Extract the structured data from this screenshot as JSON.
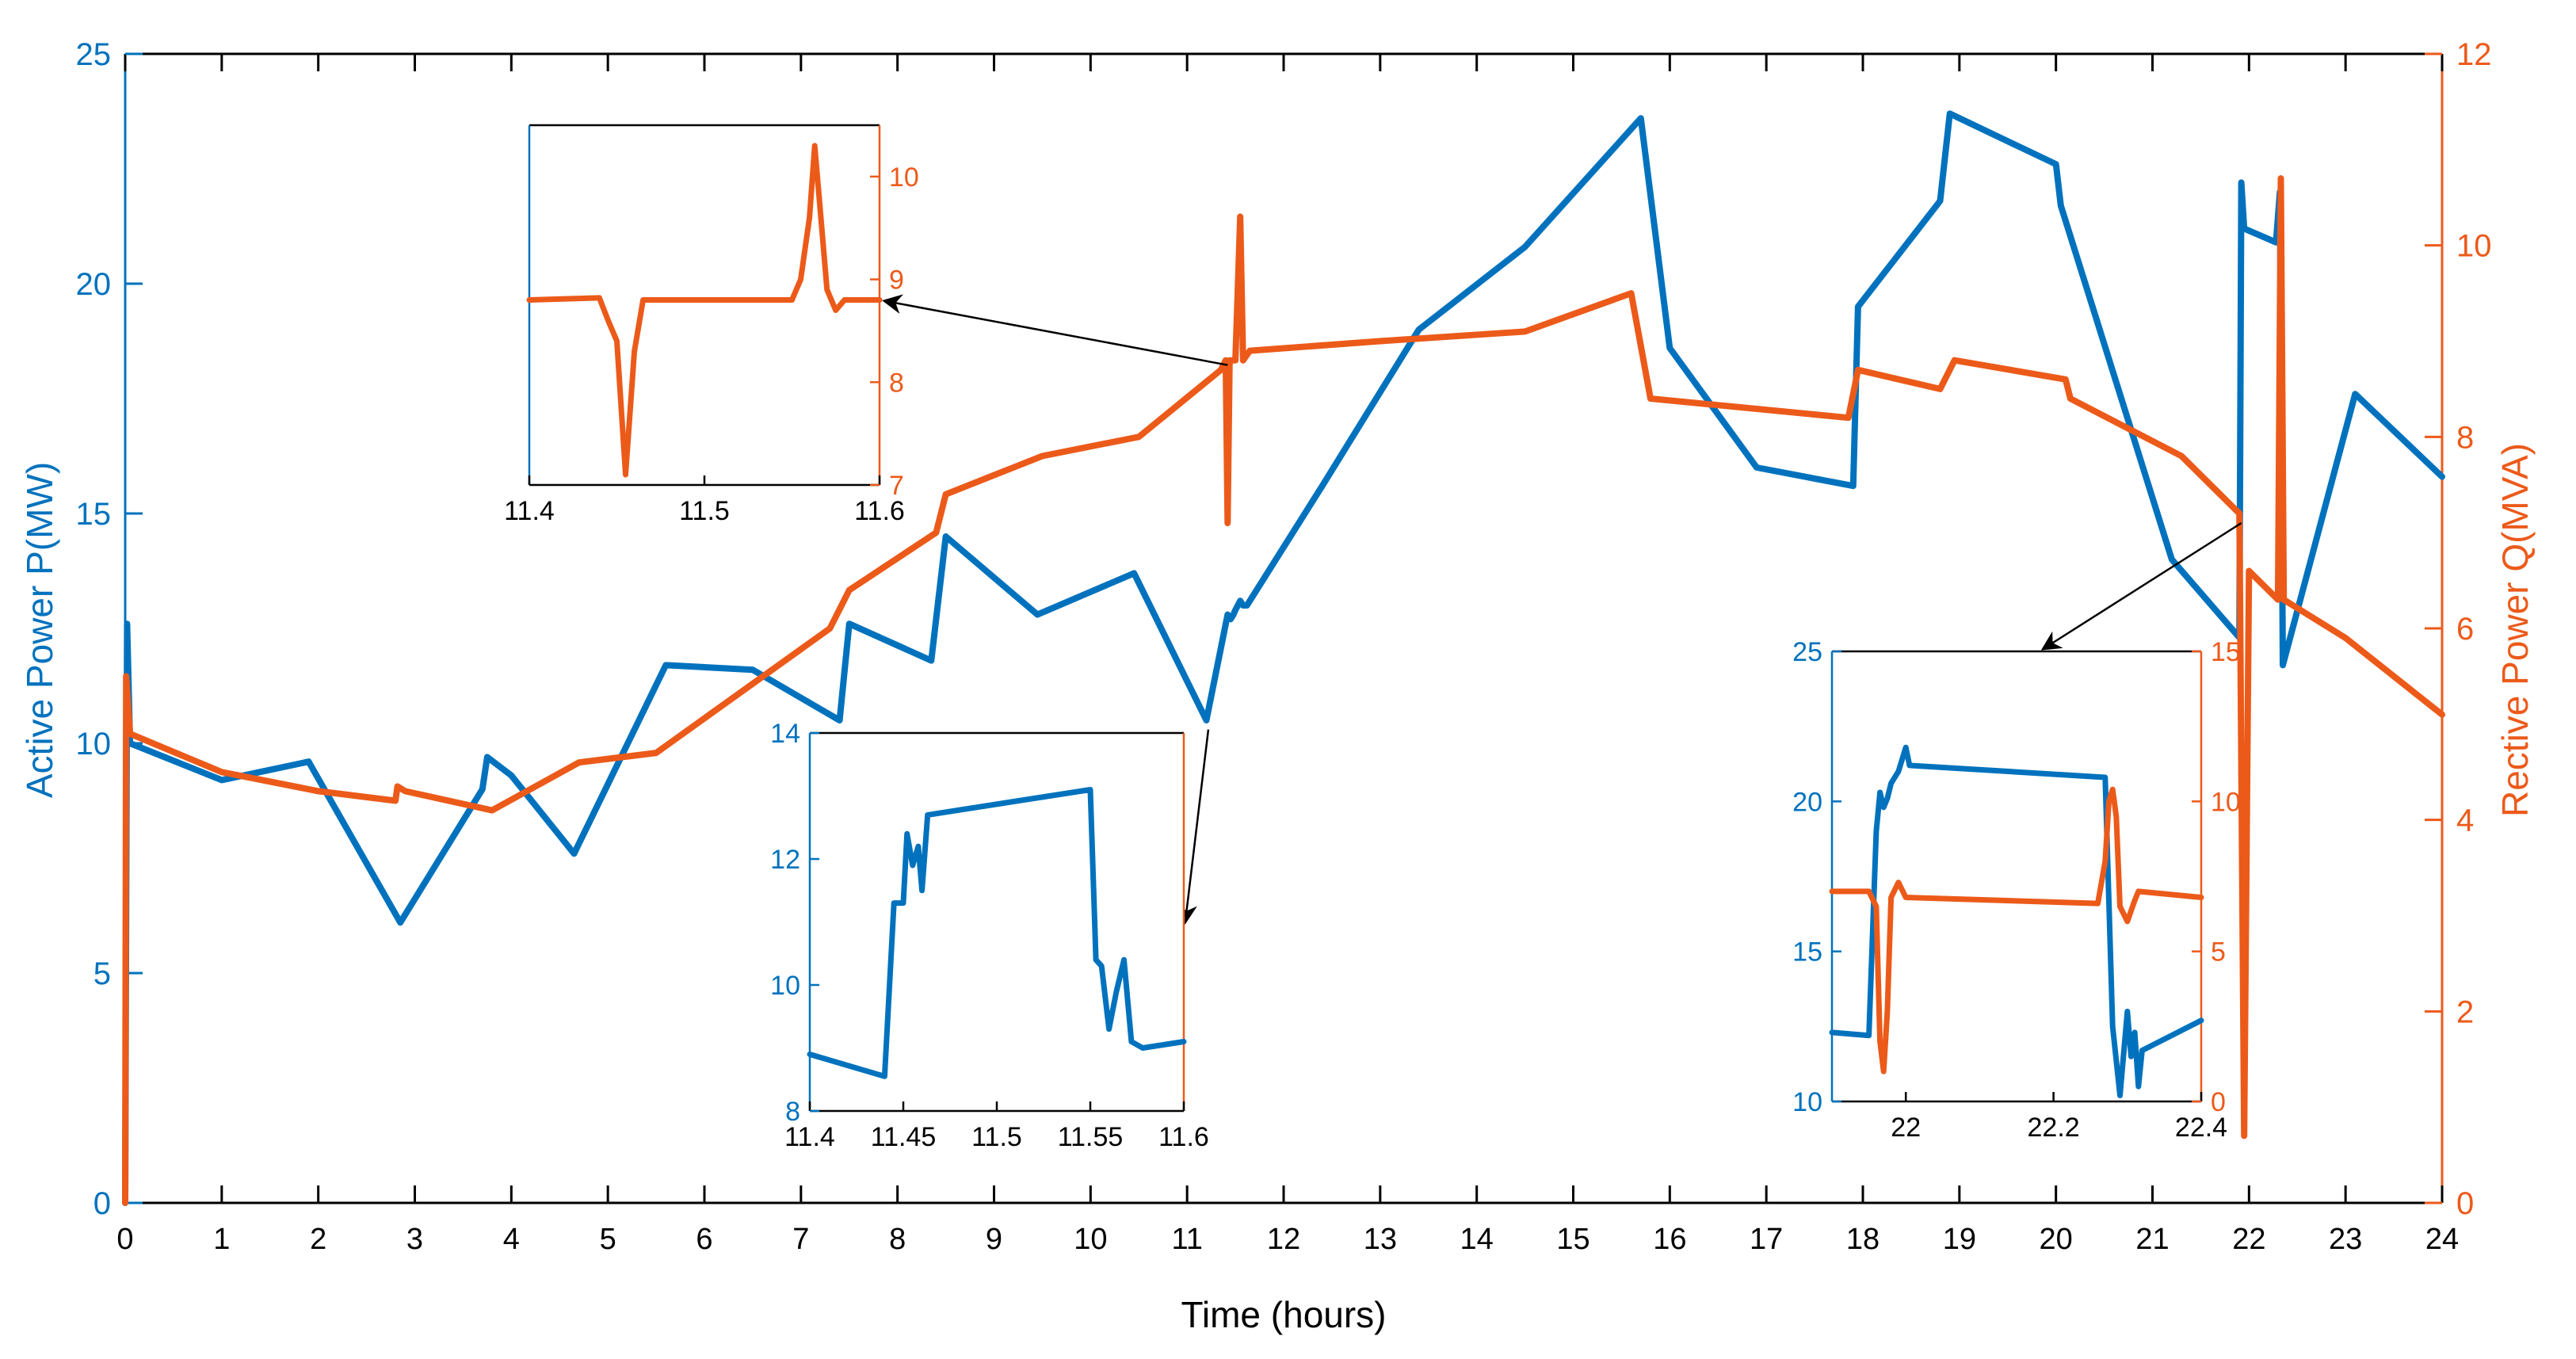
{
  "colors": {
    "active_power": "#0072BD",
    "reactive_power": "#EC5A1A",
    "axis_black": "#000000",
    "arrow": "#000000"
  },
  "chart_data": {
    "type": "line",
    "xlabel": "Time (hours)",
    "ylabel_left": "Active Power P(MW)",
    "ylabel_right": "Rective Power Q(MVA)",
    "xlim": [
      0,
      24
    ],
    "ylim_left": [
      0,
      25
    ],
    "ylim_right": [
      0,
      12
    ],
    "xticks": [
      "0",
      "1",
      "2",
      "3",
      "4",
      "5",
      "6",
      "7",
      "8",
      "9",
      "10",
      "11",
      "12",
      "13",
      "14",
      "15",
      "16",
      "17",
      "18",
      "19",
      "20",
      "21",
      "22",
      "23",
      "24"
    ],
    "yticks_left": [
      "0",
      "5",
      "10",
      "15",
      "20",
      "25"
    ],
    "yticks_right": [
      "0",
      "2",
      "4",
      "6",
      "8",
      "10",
      "12"
    ],
    "grid": false,
    "series": [
      {
        "axis": "left",
        "color_key": "active_power",
        "points": [
          [
            0,
            0
          ],
          [
            0.02,
            12.6
          ],
          [
            0.05,
            10
          ],
          [
            1,
            9.2
          ],
          [
            1.9,
            9.6
          ],
          [
            2.85,
            6.1
          ],
          [
            3.7,
            9
          ],
          [
            3.75,
            9.7
          ],
          [
            4,
            9.3
          ],
          [
            4.65,
            7.6
          ],
          [
            5.6,
            11.7
          ],
          [
            6.5,
            11.6
          ],
          [
            7.4,
            10.5
          ],
          [
            7.5,
            12.6
          ],
          [
            8.35,
            11.8
          ],
          [
            8.5,
            14.5
          ],
          [
            9.45,
            12.8
          ],
          [
            10.45,
            13.7
          ],
          [
            11.2,
            10.5
          ],
          [
            11.42,
            12.8
          ],
          [
            11.45,
            12.7
          ],
          [
            11.48,
            12.8
          ],
          [
            11.5,
            12.9
          ],
          [
            11.55,
            13.1
          ],
          [
            11.58,
            13.0
          ],
          [
            11.62,
            13.0
          ],
          [
            12.4,
            15.6
          ],
          [
            13.4,
            19
          ],
          [
            14.5,
            20.8
          ],
          [
            15.7,
            23.6
          ],
          [
            16,
            18.6
          ],
          [
            16.9,
            16
          ],
          [
            17.9,
            15.6
          ],
          [
            17.95,
            19.5
          ],
          [
            18.8,
            21.8
          ],
          [
            18.9,
            23.7
          ],
          [
            20.0,
            22.6
          ],
          [
            20.05,
            21.7
          ],
          [
            21.2,
            14
          ],
          [
            21.9,
            12.3
          ],
          [
            21.92,
            22.2
          ],
          [
            21.95,
            21.2
          ],
          [
            22.28,
            20.9
          ],
          [
            22.32,
            22.0
          ],
          [
            22.35,
            11.7
          ],
          [
            23.1,
            17.6
          ],
          [
            24,
            15.8
          ]
        ]
      },
      {
        "axis": "right",
        "color_key": "reactive_power",
        "points": [
          [
            0,
            0
          ],
          [
            0.01,
            5.5
          ],
          [
            0.05,
            4.9
          ],
          [
            1,
            4.5
          ],
          [
            2,
            4.3
          ],
          [
            2.8,
            4.2
          ],
          [
            2.82,
            4.35
          ],
          [
            2.9,
            4.3
          ],
          [
            3.8,
            4.1
          ],
          [
            4.7,
            4.6
          ],
          [
            5.5,
            4.7
          ],
          [
            7.3,
            6
          ],
          [
            7.5,
            6.4
          ],
          [
            8.4,
            7
          ],
          [
            8.5,
            7.4
          ],
          [
            9.5,
            7.8
          ],
          [
            10.5,
            8
          ],
          [
            11.35,
            8.7
          ],
          [
            11.4,
            8.8
          ],
          [
            11.42,
            7.1
          ],
          [
            11.44,
            8.8
          ],
          [
            11.5,
            8.8
          ],
          [
            11.55,
            10.3
          ],
          [
            11.58,
            8.8
          ],
          [
            11.65,
            8.9
          ],
          [
            13,
            9
          ],
          [
            14.5,
            9.1
          ],
          [
            15.6,
            9.5
          ],
          [
            15.8,
            8.4
          ],
          [
            17.85,
            8.2
          ],
          [
            17.95,
            8.7
          ],
          [
            18.8,
            8.5
          ],
          [
            18.95,
            8.8
          ],
          [
            20.1,
            8.6
          ],
          [
            20.15,
            8.4
          ],
          [
            21.3,
            7.8
          ],
          [
            21.9,
            7.2
          ],
          [
            21.95,
            0.7
          ],
          [
            22.0,
            6.6
          ],
          [
            22.3,
            6.3
          ],
          [
            22.33,
            10.7
          ],
          [
            22.36,
            6.3
          ],
          [
            23,
            5.9
          ],
          [
            24,
            5.1
          ]
        ]
      }
    ],
    "insets": [
      {
        "xticks": [
          "11.4",
          "11.5",
          "11.6"
        ],
        "xlim": [
          11.4,
          11.6
        ],
        "axis": "right",
        "ylim": [
          7,
          10.5
        ],
        "yticks": [
          "7",
          "8",
          "9",
          "10"
        ],
        "series": [
          {
            "color_key": "reactive_power",
            "points": [
              [
                11.4,
                8.8
              ],
              [
                11.44,
                8.82
              ],
              [
                11.445,
                8.6
              ],
              [
                11.45,
                8.4
              ],
              [
                11.455,
                7.1
              ],
              [
                11.46,
                8.3
              ],
              [
                11.465,
                8.8
              ],
              [
                11.55,
                8.8
              ],
              [
                11.555,
                9.0
              ],
              [
                11.56,
                9.6
              ],
              [
                11.563,
                10.3
              ],
              [
                11.566,
                9.7
              ],
              [
                11.57,
                8.9
              ],
              [
                11.575,
                8.7
              ],
              [
                11.58,
                8.8
              ],
              [
                11.6,
                8.8
              ]
            ]
          }
        ]
      },
      {
        "xticks": [
          "11.4",
          "11.45",
          "11.5",
          "11.55",
          "11.6"
        ],
        "xlim": [
          11.4,
          11.6
        ],
        "axis": "left",
        "ylim": [
          8,
          14
        ],
        "yticks": [
          "8",
          "10",
          "12",
          "14"
        ],
        "series": [
          {
            "color_key": "active_power",
            "points": [
              [
                11.4,
                8.9
              ],
              [
                11.44,
                8.55
              ],
              [
                11.445,
                11.3
              ],
              [
                11.45,
                11.3
              ],
              [
                11.452,
                12.4
              ],
              [
                11.455,
                11.9
              ],
              [
                11.458,
                12.2
              ],
              [
                11.46,
                11.5
              ],
              [
                11.463,
                12.7
              ],
              [
                11.55,
                13.1
              ],
              [
                11.553,
                10.4
              ],
              [
                11.556,
                10.3
              ],
              [
                11.56,
                9.3
              ],
              [
                11.564,
                9.9
              ],
              [
                11.568,
                10.4
              ],
              [
                11.572,
                9.1
              ],
              [
                11.578,
                9.0
              ],
              [
                11.6,
                9.1
              ]
            ]
          }
        ]
      },
      {
        "xticks": [
          "22",
          "22.2",
          "22.4"
        ],
        "xlim": [
          21.9,
          22.4
        ],
        "ylim_left": [
          10,
          25
        ],
        "ylim_right": [
          0,
          15
        ],
        "yticks_left": [
          "10",
          "15",
          "20",
          "25"
        ],
        "yticks_right": [
          "0",
          "5",
          "10",
          "15"
        ],
        "series": [
          {
            "axis": "left",
            "color_key": "active_power",
            "points": [
              [
                21.9,
                12.3
              ],
              [
                21.95,
                12.2
              ],
              [
                21.96,
                19
              ],
              [
                21.965,
                20.3
              ],
              [
                21.97,
                19.8
              ],
              [
                21.975,
                20.1
              ],
              [
                21.98,
                20.6
              ],
              [
                21.99,
                21
              ],
              [
                22,
                21.8
              ],
              [
                22.005,
                21.2
              ],
              [
                22.27,
                20.8
              ],
              [
                22.28,
                12.5
              ],
              [
                22.29,
                10.2
              ],
              [
                22.3,
                13
              ],
              [
                22.305,
                11.5
              ],
              [
                22.31,
                12.3
              ],
              [
                22.315,
                10.5
              ],
              [
                22.32,
                11.7
              ],
              [
                22.4,
                12.7
              ]
            ]
          },
          {
            "axis": "right",
            "color_key": "reactive_power",
            "points": [
              [
                21.9,
                7
              ],
              [
                21.95,
                7
              ],
              [
                21.96,
                6.5
              ],
              [
                21.965,
                2
              ],
              [
                21.97,
                1
              ],
              [
                21.975,
                3
              ],
              [
                21.98,
                6.8
              ],
              [
                21.99,
                7.3
              ],
              [
                22,
                6.8
              ],
              [
                22.26,
                6.6
              ],
              [
                22.27,
                8
              ],
              [
                22.275,
                10
              ],
              [
                22.28,
                10.4
              ],
              [
                22.285,
                9.5
              ],
              [
                22.29,
                6.5
              ],
              [
                22.3,
                6
              ],
              [
                22.31,
                6.7
              ],
              [
                22.315,
                7
              ],
              [
                22.4,
                6.8
              ]
            ]
          }
        ]
      }
    ]
  }
}
